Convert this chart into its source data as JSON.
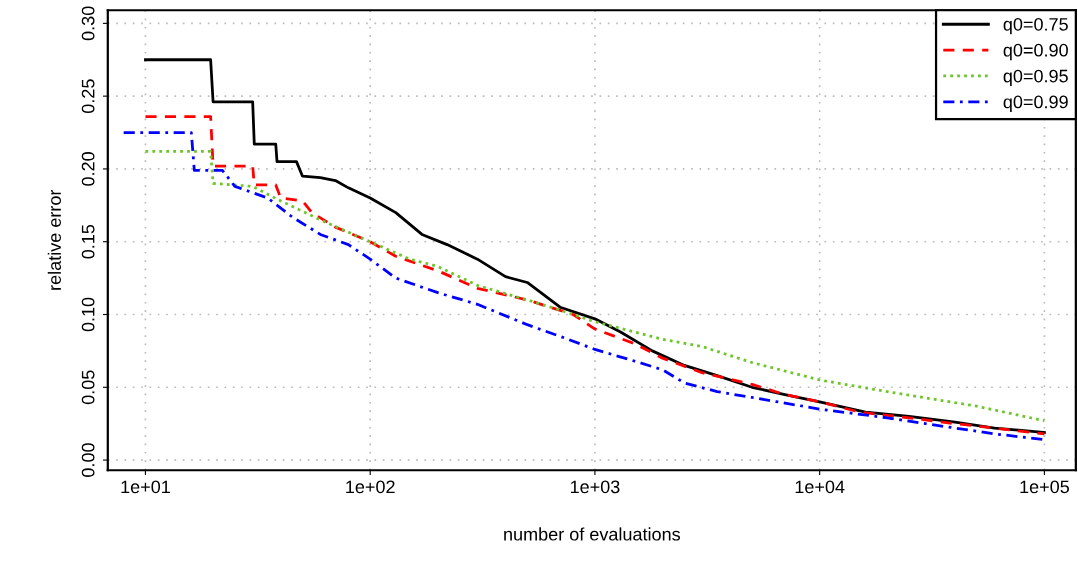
{
  "chart_data": {
    "type": "line",
    "xlabel": "number of evaluations",
    "ylabel": "relative error",
    "log": "x",
    "xlim": [
      6.8,
      138000
    ],
    "ylim": [
      -0.007,
      0.309
    ],
    "xticks": [
      {
        "value": 10,
        "label": "1e+01"
      },
      {
        "value": 100,
        "label": "1e+02"
      },
      {
        "value": 1000,
        "label": "1e+03"
      },
      {
        "value": 10000,
        "label": "1e+04"
      },
      {
        "value": 100000,
        "label": "1e+05"
      }
    ],
    "yticks": [
      {
        "value": 0,
        "label": "0.00"
      },
      {
        "value": 0.05,
        "label": "0.05"
      },
      {
        "value": 0.1,
        "label": "0.10"
      },
      {
        "value": 0.15,
        "label": "0.15"
      },
      {
        "value": 0.2,
        "label": "0.20"
      },
      {
        "value": 0.25,
        "label": "0.25"
      },
      {
        "value": 0.3,
        "label": "0.30"
      }
    ],
    "grid": true,
    "legend": "top right",
    "series": [
      {
        "name": "q0=0.75",
        "color": "#000000",
        "line_style": "solid",
        "x": [
          10,
          19.5,
          20,
          30,
          30.5,
          38,
          38.5,
          47,
          50,
          60,
          70,
          80,
          100,
          130,
          170,
          220,
          300,
          400,
          500,
          700,
          1000,
          1300,
          1800,
          2500,
          3500,
          5000,
          7000,
          10000,
          16000,
          25000,
          40000,
          60000,
          100000
        ],
        "values": [
          0.275,
          0.275,
          0.246,
          0.246,
          0.217,
          0.217,
          0.205,
          0.205,
          0.195,
          0.194,
          0.192,
          0.187,
          0.18,
          0.17,
          0.155,
          0.148,
          0.138,
          0.126,
          0.122,
          0.105,
          0.097,
          0.088,
          0.075,
          0.065,
          0.058,
          0.05,
          0.045,
          0.04,
          0.033,
          0.03,
          0.026,
          0.022,
          0.019
        ]
      },
      {
        "name": "q0=0.90",
        "color": "#ff0000",
        "line_style": "dashed",
        "x": [
          10,
          19.5,
          20,
          30,
          30.5,
          38,
          40,
          50,
          55,
          70,
          100,
          130,
          200,
          300,
          500,
          800,
          1000,
          1500,
          2000,
          3000,
          5000,
          7000,
          10000,
          15000,
          25000,
          40000,
          60000,
          100000
        ],
        "values": [
          0.236,
          0.236,
          0.202,
          0.202,
          0.189,
          0.189,
          0.18,
          0.178,
          0.17,
          0.16,
          0.15,
          0.14,
          0.13,
          0.118,
          0.11,
          0.1,
          0.09,
          0.08,
          0.07,
          0.06,
          0.052,
          0.045,
          0.04,
          0.033,
          0.029,
          0.025,
          0.022,
          0.018
        ]
      },
      {
        "name": "q0=0.95",
        "color": "#6cc62a",
        "line_style": "dotted",
        "x": [
          10,
          19.5,
          20,
          30,
          40,
          60,
          100,
          150,
          200,
          300,
          500,
          700,
          1000,
          2000,
          3000,
          5000,
          10000,
          20000,
          50000,
          100000
        ],
        "values": [
          0.212,
          0.212,
          0.19,
          0.188,
          0.178,
          0.165,
          0.15,
          0.138,
          0.133,
          0.12,
          0.11,
          0.103,
          0.095,
          0.083,
          0.078,
          0.067,
          0.055,
          0.047,
          0.037,
          0.027
        ]
      },
      {
        "name": "q0=0.99",
        "color": "#0000ff",
        "line_style": "dashdot",
        "x": [
          8,
          16,
          16.5,
          22,
          25,
          35,
          45,
          60,
          80,
          100,
          130,
          200,
          300,
          500,
          700,
          1000,
          1500,
          2000,
          2500,
          3500,
          5000,
          10000,
          20000,
          40000,
          60000,
          100000
        ],
        "values": [
          0.225,
          0.225,
          0.199,
          0.199,
          0.188,
          0.18,
          0.167,
          0.155,
          0.148,
          0.138,
          0.125,
          0.115,
          0.107,
          0.093,
          0.085,
          0.076,
          0.068,
          0.062,
          0.053,
          0.047,
          0.043,
          0.035,
          0.029,
          0.022,
          0.018,
          0.014
        ]
      }
    ]
  }
}
